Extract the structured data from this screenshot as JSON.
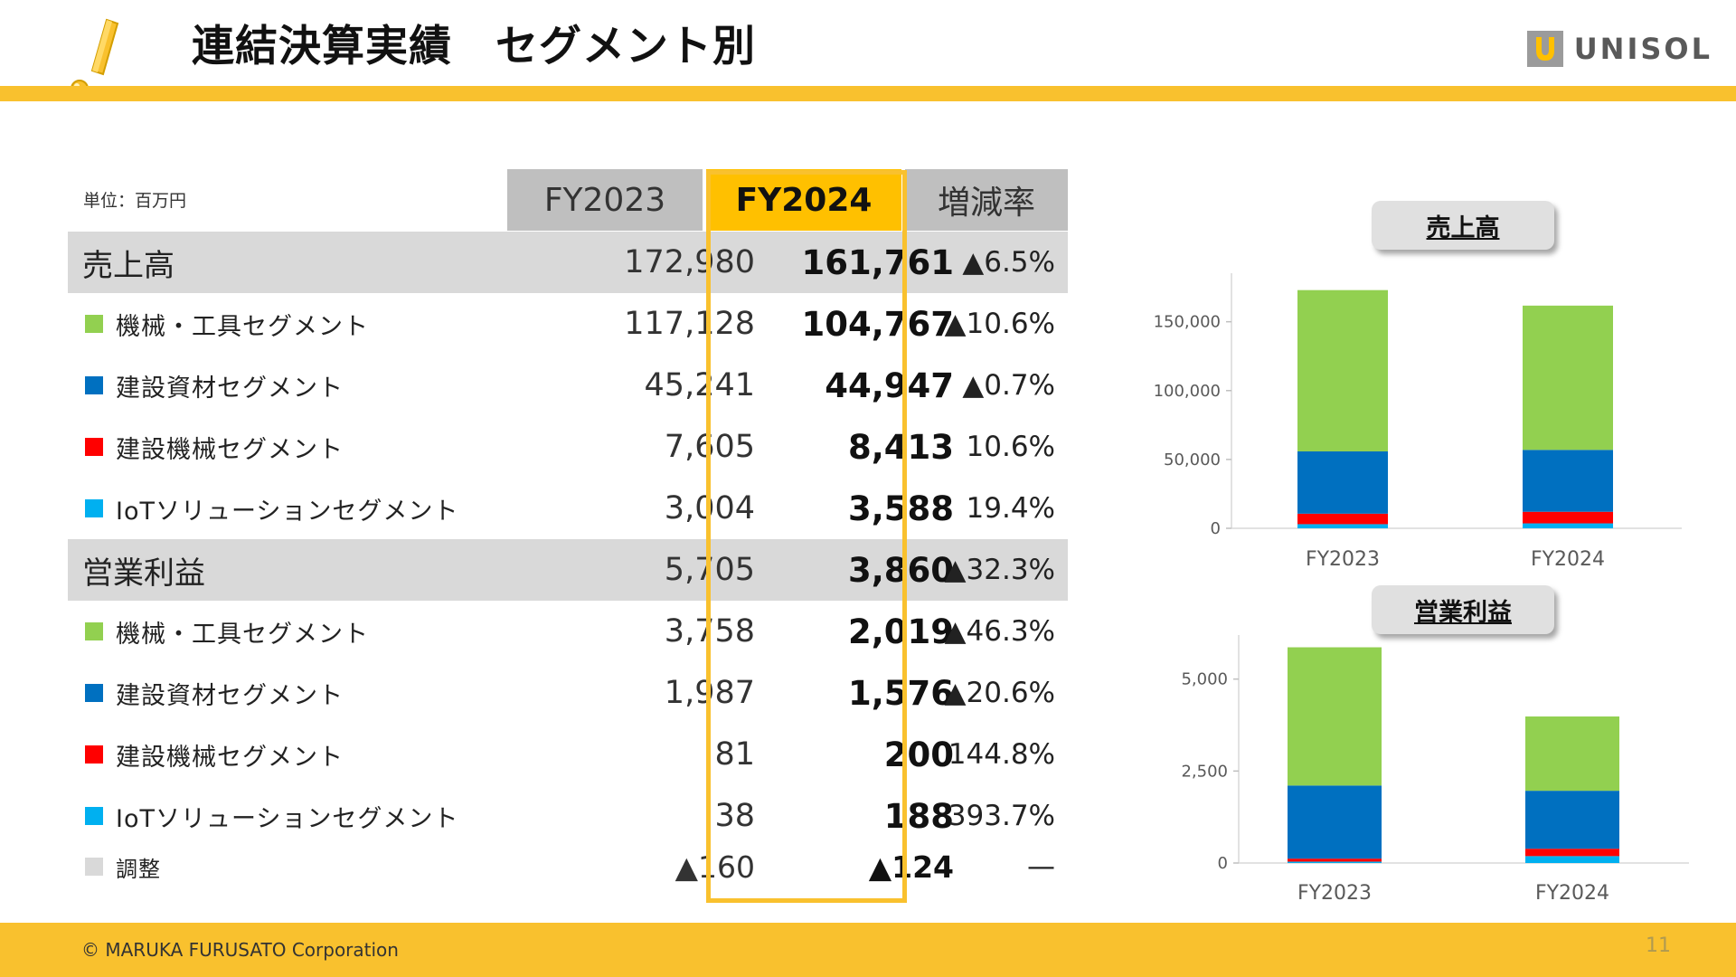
{
  "header": {
    "title": "連結決算実績　セグメント別",
    "brand_name": "UNISOL"
  },
  "table": {
    "unit": "単位：百万円",
    "columns": [
      "FY2023",
      "FY2024",
      "増減率"
    ],
    "rows": [
      {
        "label": "売上高",
        "fy2023": "172,980",
        "fy2024": "161,761",
        "rate": "▲6.5%"
      },
      {
        "label": "機械・工具セグメント",
        "fy2023": "117,128",
        "fy2024": "104,767",
        "rate": "▲10.6%"
      },
      {
        "label": "建設資材セグメント",
        "fy2023": "45,241",
        "fy2024": "44,947",
        "rate": "▲0.7%"
      },
      {
        "label": "建設機械セグメント",
        "fy2023": "7,605",
        "fy2024": "8,413",
        "rate": "10.6%"
      },
      {
        "label": "IoTソリューションセグメント",
        "fy2023": "3,004",
        "fy2024": "3,588",
        "rate": "19.4%"
      },
      {
        "label": "営業利益",
        "fy2023": "5,705",
        "fy2024": "3,860",
        "rate": "▲32.3%"
      },
      {
        "label": "機械・工具セグメント",
        "fy2023": "3,758",
        "fy2024": "2,019",
        "rate": "▲46.3%"
      },
      {
        "label": "建設資材セグメント",
        "fy2023": "1,987",
        "fy2024": "1,576",
        "rate": "▲20.6%"
      },
      {
        "label": "建設機械セグメント",
        "fy2023": "81",
        "fy2024": "200",
        "rate": "144.8%"
      },
      {
        "label": "IoTソリューションセグメント",
        "fy2023": "38",
        "fy2024": "188",
        "rate": "393.7%"
      },
      {
        "label": "調整",
        "fy2023": "▲160",
        "fy2024": "▲124",
        "rate": "—"
      }
    ]
  },
  "colors": {
    "accent_yellow": "#f9c12e",
    "fy2024_header": "#ffc000",
    "machinery_tools": "#92d050",
    "construction_materials": "#0070c0",
    "construction_machinery": "#ff0000",
    "iot_solutions": "#00b0f0",
    "adjustment": "#d9d9d9"
  },
  "chart_data": [
    {
      "type": "bar",
      "stacked": true,
      "title": "売上高",
      "categories": [
        "FY2023",
        "FY2024"
      ],
      "series": [
        {
          "name": "IoTソリューションセグメント",
          "values": [
            3004,
            3588
          ]
        },
        {
          "name": "建設機械セグメント",
          "values": [
            7605,
            8413
          ]
        },
        {
          "name": "建設資材セグメント",
          "values": [
            45241,
            44947
          ]
        },
        {
          "name": "機械・工具セグメント",
          "values": [
            117128,
            104767
          ]
        }
      ],
      "ylim": [
        0,
        180000
      ],
      "yticks": [
        0,
        50000,
        100000,
        150000
      ],
      "ytick_labels": [
        "0",
        "50,000",
        "100,000",
        "150,000"
      ]
    },
    {
      "type": "bar",
      "stacked": true,
      "title": "営業利益",
      "categories": [
        "FY2023",
        "FY2024"
      ],
      "series": [
        {
          "name": "IoTソリューションセグメント",
          "values": [
            38,
            188
          ]
        },
        {
          "name": "建設機械セグメント",
          "values": [
            81,
            200
          ]
        },
        {
          "name": "建設資材セグメント",
          "values": [
            1987,
            1576
          ]
        },
        {
          "name": "機械・工具セグメント",
          "values": [
            3758,
            2019
          ]
        }
      ],
      "ylim": [
        0,
        6000
      ],
      "yticks": [
        0,
        2500,
        5000
      ],
      "ytick_labels": [
        "0",
        "2,500",
        "5,000"
      ]
    }
  ],
  "footer": {
    "copyright": "© MARUKA FURUSATO Corporation",
    "page_number": "11"
  }
}
